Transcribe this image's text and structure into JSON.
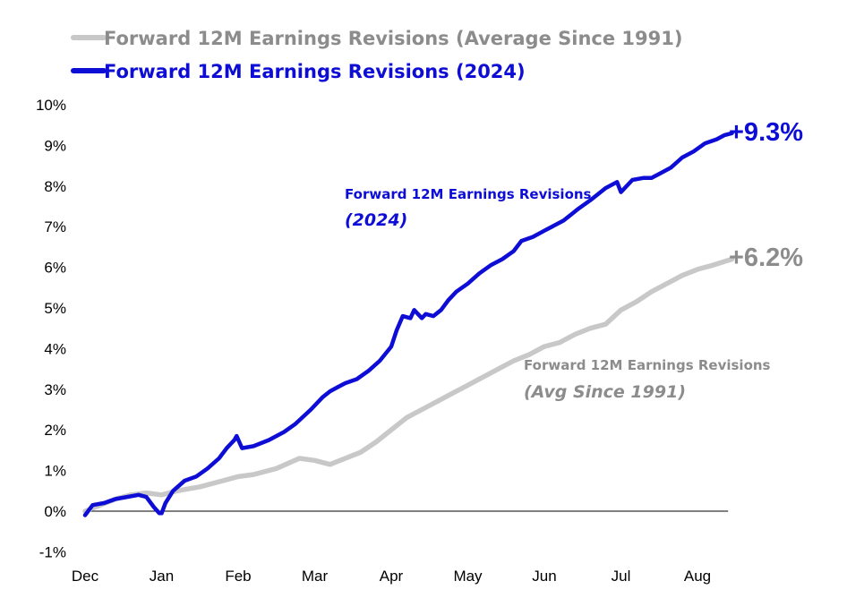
{
  "legend": {
    "avg": "Forward 12M Earnings Revisions (Average Since 1991)",
    "current": "Forward 12M Earnings Revisions (2024)"
  },
  "annotations": {
    "current_line1": "Forward 12M Earnings Revisions",
    "current_line2": "(2024)",
    "avg_line1": "Forward 12M Earnings Revisions",
    "avg_line2": "(Avg Since 1991)"
  },
  "end_labels": {
    "current": "+9.3%",
    "avg": "+6.2%"
  },
  "colors": {
    "current": "#0d0dd6",
    "avg": "#c8c8c8",
    "avg_text": "#8c8c8c",
    "axis": "#000000"
  },
  "chart_data": {
    "type": "line",
    "title": "",
    "xlabel": "",
    "ylabel": "",
    "ylim": [
      -1,
      10
    ],
    "yticks": [
      -1,
      0,
      1,
      2,
      3,
      4,
      5,
      6,
      7,
      8,
      9,
      10
    ],
    "ytick_labels": [
      "-1%",
      "0%",
      "1%",
      "2%",
      "3%",
      "4%",
      "5%",
      "6%",
      "7%",
      "8%",
      "9%",
      "10%"
    ],
    "xlim": [
      0,
      8.5
    ],
    "xticks": [
      0,
      1,
      2,
      3,
      4,
      5,
      6,
      7,
      8
    ],
    "xtick_labels": [
      "Dec",
      "Jan",
      "Feb",
      "Mar",
      "Apr",
      "May",
      "Jun",
      "Jul",
      "Aug"
    ],
    "grid": false,
    "legend_position": "top-left",
    "series": [
      {
        "name": "Forward 12M Earnings Revisions (Average Since 1991)",
        "x": [
          0,
          0.2,
          0.4,
          0.6,
          0.8,
          1.0,
          1.2,
          1.5,
          1.8,
          2.0,
          2.2,
          2.5,
          2.8,
          3.0,
          3.2,
          3.4,
          3.6,
          3.8,
          4.0,
          4.2,
          4.4,
          4.6,
          4.8,
          5.0,
          5.2,
          5.4,
          5.6,
          5.8,
          6.0,
          6.2,
          6.4,
          6.6,
          6.8,
          7.0,
          7.2,
          7.4,
          7.6,
          7.8,
          8.0,
          8.2,
          8.45
        ],
        "values": [
          0.0,
          0.15,
          0.3,
          0.4,
          0.45,
          0.4,
          0.5,
          0.6,
          0.75,
          0.85,
          0.9,
          1.05,
          1.3,
          1.25,
          1.15,
          1.3,
          1.45,
          1.7,
          2.0,
          2.3,
          2.5,
          2.7,
          2.9,
          3.1,
          3.3,
          3.5,
          3.7,
          3.85,
          4.05,
          4.15,
          4.35,
          4.5,
          4.6,
          4.95,
          5.15,
          5.4,
          5.6,
          5.8,
          5.95,
          6.05,
          6.2
        ]
      },
      {
        "name": "Forward 12M Earnings Revisions (2024)",
        "x": [
          0,
          0.1,
          0.25,
          0.4,
          0.55,
          0.7,
          0.8,
          0.9,
          0.97,
          1.0,
          1.05,
          1.15,
          1.3,
          1.45,
          1.6,
          1.75,
          1.85,
          1.95,
          1.98,
          2.05,
          2.2,
          2.4,
          2.6,
          2.75,
          2.95,
          3.1,
          3.2,
          3.3,
          3.4,
          3.55,
          3.7,
          3.85,
          4.0,
          4.07,
          4.15,
          4.25,
          4.3,
          4.4,
          4.45,
          4.55,
          4.65,
          4.75,
          4.85,
          5.0,
          5.15,
          5.3,
          5.45,
          5.6,
          5.7,
          5.85,
          6.0,
          6.1,
          6.25,
          6.45,
          6.6,
          6.8,
          6.95,
          7.0,
          7.05,
          7.15,
          7.3,
          7.4,
          7.5,
          7.65,
          7.8,
          7.95,
          8.1,
          8.25,
          8.35,
          8.45
        ],
        "values": [
          -0.1,
          0.15,
          0.2,
          0.3,
          0.35,
          0.4,
          0.35,
          0.1,
          -0.05,
          -0.05,
          0.2,
          0.5,
          0.75,
          0.85,
          1.05,
          1.3,
          1.55,
          1.75,
          1.85,
          1.55,
          1.6,
          1.75,
          1.95,
          2.15,
          2.5,
          2.8,
          2.95,
          3.05,
          3.15,
          3.25,
          3.45,
          3.7,
          4.05,
          4.45,
          4.8,
          4.75,
          4.95,
          4.75,
          4.85,
          4.8,
          4.95,
          5.2,
          5.4,
          5.6,
          5.85,
          6.05,
          6.2,
          6.4,
          6.65,
          6.75,
          6.9,
          7.0,
          7.15,
          7.45,
          7.65,
          7.95,
          8.1,
          7.85,
          7.95,
          8.15,
          8.2,
          8.2,
          8.3,
          8.45,
          8.7,
          8.85,
          9.05,
          9.15,
          9.25,
          9.3
        ]
      }
    ]
  }
}
